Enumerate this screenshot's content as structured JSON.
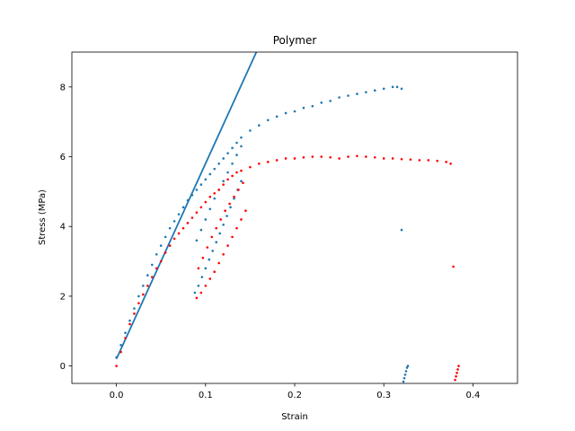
{
  "chart_data": {
    "type": "scatter",
    "title": "Polymer",
    "xlabel": "Strain",
    "ylabel": "Stress (MPa)",
    "xlim": [
      -0.05,
      0.45
    ],
    "ylim": [
      -0.5,
      9
    ],
    "xticks": [
      0.0,
      0.1,
      0.2,
      0.3,
      0.4
    ],
    "xtick_labels": [
      "0.0",
      "0.1",
      "0.2",
      "0.3",
      "0.4"
    ],
    "yticks": [
      0,
      2,
      4,
      6,
      8
    ],
    "ytick_labels": [
      "0",
      "2",
      "4",
      "6",
      "8"
    ],
    "grid": false,
    "colors": {
      "blue": "#1f77b4",
      "red": "#ff0000"
    },
    "fit_line": {
      "color": "#1f77b4",
      "x": [
        0.0,
        0.157
      ],
      "y": [
        0.2,
        9.0
      ]
    },
    "series": [
      {
        "color": "#1f77b4",
        "x": [
          0.0,
          0.005,
          0.01,
          0.015,
          0.02,
          0.025,
          0.03,
          0.035,
          0.04,
          0.045,
          0.05,
          0.055,
          0.06,
          0.065,
          0.07,
          0.075,
          0.08,
          0.085,
          0.09,
          0.095,
          0.1,
          0.105,
          0.11,
          0.115,
          0.12,
          0.125,
          0.13,
          0.135,
          0.14,
          0.15,
          0.16,
          0.17,
          0.18,
          0.19,
          0.2,
          0.21,
          0.22,
          0.23,
          0.24,
          0.25,
          0.26,
          0.27,
          0.28,
          0.29,
          0.3,
          0.31,
          0.315,
          0.32,
          0.088,
          0.092,
          0.096,
          0.1,
          0.104,
          0.108,
          0.112,
          0.116,
          0.12,
          0.124,
          0.128,
          0.132,
          0.136,
          0.14,
          0.09,
          0.095,
          0.1,
          0.105,
          0.11,
          0.115,
          0.12,
          0.125,
          0.13,
          0.135,
          0.14,
          0.32,
          0.322,
          0.323,
          0.324,
          0.325,
          0.326,
          0.327
        ],
        "y": [
          0.25,
          0.6,
          0.95,
          1.3,
          1.65,
          2.0,
          2.3,
          2.6,
          2.9,
          3.2,
          3.45,
          3.7,
          3.95,
          4.15,
          4.35,
          4.55,
          4.75,
          4.9,
          5.05,
          5.2,
          5.35,
          5.5,
          5.65,
          5.8,
          5.95,
          6.1,
          6.25,
          6.4,
          6.55,
          6.75,
          6.9,
          7.05,
          7.15,
          7.25,
          7.3,
          7.4,
          7.45,
          7.55,
          7.6,
          7.7,
          7.75,
          7.8,
          7.85,
          7.9,
          7.95,
          8.0,
          8.0,
          7.95,
          2.1,
          2.3,
          2.55,
          2.8,
          3.05,
          3.3,
          3.55,
          3.8,
          4.05,
          4.3,
          4.55,
          4.8,
          5.05,
          5.3,
          3.6,
          3.9,
          4.2,
          4.5,
          4.8,
          5.05,
          5.3,
          5.55,
          5.8,
          6.05,
          6.3,
          3.9,
          -0.45,
          -0.35,
          -0.25,
          -0.15,
          -0.05,
          0.0
        ]
      },
      {
        "color": "#ff0000",
        "x": [
          0.0,
          0.005,
          0.01,
          0.015,
          0.02,
          0.025,
          0.03,
          0.035,
          0.04,
          0.045,
          0.05,
          0.055,
          0.06,
          0.065,
          0.07,
          0.075,
          0.08,
          0.085,
          0.09,
          0.095,
          0.1,
          0.105,
          0.11,
          0.115,
          0.12,
          0.125,
          0.13,
          0.135,
          0.14,
          0.15,
          0.16,
          0.17,
          0.18,
          0.19,
          0.2,
          0.21,
          0.22,
          0.23,
          0.24,
          0.25,
          0.26,
          0.27,
          0.28,
          0.29,
          0.3,
          0.31,
          0.32,
          0.33,
          0.34,
          0.35,
          0.36,
          0.37,
          0.375,
          0.09,
          0.095,
          0.1,
          0.105,
          0.11,
          0.115,
          0.12,
          0.125,
          0.13,
          0.135,
          0.14,
          0.145,
          0.092,
          0.097,
          0.102,
          0.107,
          0.112,
          0.117,
          0.122,
          0.127,
          0.132,
          0.137,
          0.142,
          0.378,
          0.38,
          0.381,
          0.382,
          0.383,
          0.384
        ],
        "y": [
          0.0,
          0.4,
          0.8,
          1.2,
          1.5,
          1.8,
          2.05,
          2.3,
          2.55,
          2.8,
          3.0,
          3.25,
          3.45,
          3.65,
          3.8,
          3.95,
          4.1,
          4.25,
          4.4,
          4.55,
          4.7,
          4.85,
          4.95,
          5.05,
          5.2,
          5.35,
          5.45,
          5.55,
          5.6,
          5.7,
          5.8,
          5.85,
          5.9,
          5.95,
          5.95,
          5.98,
          6.0,
          6.0,
          5.98,
          5.95,
          6.0,
          6.02,
          6.0,
          5.98,
          5.95,
          5.95,
          5.93,
          5.92,
          5.9,
          5.9,
          5.88,
          5.85,
          5.8,
          1.95,
          2.1,
          2.3,
          2.5,
          2.7,
          2.95,
          3.2,
          3.45,
          3.7,
          3.95,
          4.2,
          4.45,
          2.8,
          3.1,
          3.4,
          3.7,
          3.95,
          4.2,
          4.45,
          4.65,
          4.85,
          5.05,
          5.25,
          2.85,
          -0.4,
          -0.3,
          -0.2,
          -0.1,
          0.0
        ]
      }
    ]
  }
}
